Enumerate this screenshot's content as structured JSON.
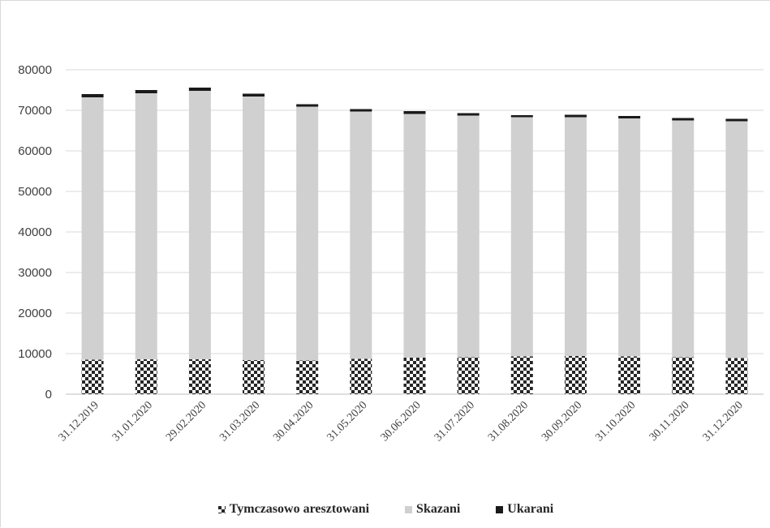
{
  "chart_data": {
    "type": "bar",
    "stacked": true,
    "title": "",
    "xlabel": "",
    "ylabel": "",
    "ylim": [
      0,
      80000
    ],
    "yticks": [
      0,
      10000,
      20000,
      30000,
      40000,
      50000,
      60000,
      70000,
      80000
    ],
    "grid": true,
    "legend_position": "bottom",
    "categories": [
      "31.12.2019",
      "31.01.2020",
      "29.02.2020",
      "31.03.2020",
      "30.04.2020",
      "31.05.2020",
      "30.06.2020",
      "31.07.2020",
      "31.08.2020",
      "30.09.2020",
      "31.10.2020",
      "30.11.2020",
      "31.12.2020"
    ],
    "series": [
      {
        "name": "Tymczasowo aresztowani",
        "pattern": "checkerboard",
        "color": "#262626",
        "values": [
          8500,
          8600,
          8600,
          8400,
          8300,
          8700,
          9000,
          9100,
          9300,
          9400,
          9300,
          9100,
          8900
        ]
      },
      {
        "name": "Skazani",
        "color": "#d0d0d0",
        "values": [
          64700,
          65600,
          66200,
          65000,
          62600,
          61000,
          60100,
          59600,
          59000,
          58900,
          58700,
          58400,
          58400
        ]
      },
      {
        "name": "Ukarani",
        "color": "#1a1a1a",
        "values": [
          800,
          800,
          800,
          700,
          600,
          600,
          700,
          600,
          500,
          600,
          600,
          600,
          600
        ]
      }
    ]
  }
}
